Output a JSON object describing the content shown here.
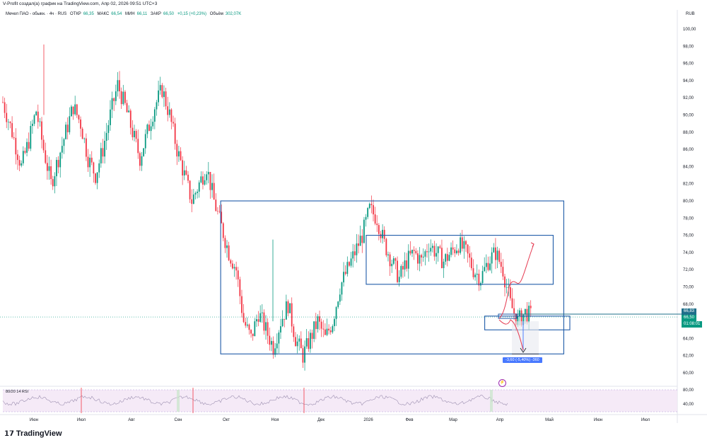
{
  "header": {
    "caption": "V-Profit создал(а) график на TradingView.com, Апр 02, 2026 09:51 UTC+3",
    "symbol": "Мечел ПАО - обыкн. · 4ч · RUS",
    "open_label": "ОТКР",
    "open_value": "66,35",
    "high_label": "МАКС",
    "high_value": "66,54",
    "low_label": "МИН",
    "low_value": "66,11",
    "close_label": "ЗАКР",
    "close_value": "66,50",
    "change": "+0,15 (+0,23%)",
    "volume_label": "Объём",
    "volume_value": "302,07K",
    "currency": "RUB"
  },
  "price_tags": {
    "upper": "66,83",
    "last": "66,50",
    "countdown": "01:08:01"
  },
  "rsi_label": "80/20 14 RSI",
  "measure_label": "-3,60 (-5,40%) -360",
  "brand": "TradingView",
  "colors": {
    "up": "#089981",
    "down": "#f23645",
    "box": "#1e5aa8",
    "projection": "#e53950",
    "rsi_line": "#9c8fb0",
    "rsi_band": "#f3e5f5"
  },
  "chart_data": {
    "type": "candlestick",
    "title": "Мечел ПАО - обыкн.",
    "interval": "4ч",
    "y_axis": {
      "ticks": [
        "100,00",
        "98,00",
        "96,00",
        "94,00",
        "92,00",
        "90,00",
        "88,00",
        "86,00",
        "84,00",
        "82,00",
        "80,00",
        "78,00",
        "76,00",
        "74,00",
        "72,00",
        "70,00",
        "68,00",
        "66,00",
        "64,00",
        "62,00",
        "60,00"
      ],
      "ylim": [
        60,
        100
      ]
    },
    "x_axis": {
      "ticks": [
        "Июн",
        "Июл",
        "Авг",
        "Сен",
        "Окт",
        "Ноя",
        "Дек",
        "2026",
        "Фев",
        "Мар",
        "Апр",
        "Май",
        "Июн",
        "Июл"
      ]
    },
    "price_path": [
      [
        0,
        91.5
      ],
      [
        5,
        88
      ],
      [
        10,
        84
      ],
      [
        14,
        87
      ],
      [
        18,
        90.5
      ],
      [
        22,
        86
      ],
      [
        26,
        82
      ],
      [
        30,
        85
      ],
      [
        34,
        88
      ],
      [
        38,
        91
      ],
      [
        42,
        89
      ],
      [
        46,
        85
      ],
      [
        50,
        83
      ],
      [
        54,
        86
      ],
      [
        58,
        90
      ],
      [
        62,
        93.5
      ],
      [
        66,
        91
      ],
      [
        70,
        88
      ],
      [
        74,
        85
      ],
      [
        78,
        88
      ],
      [
        82,
        91
      ],
      [
        86,
        93
      ],
      [
        90,
        90
      ],
      [
        94,
        86
      ],
      [
        98,
        83
      ],
      [
        102,
        80
      ],
      [
        106,
        82
      ],
      [
        110,
        84
      ],
      [
        114,
        80
      ],
      [
        118,
        77
      ],
      [
        122,
        74
      ],
      [
        126,
        72
      ],
      [
        130,
        66
      ],
      [
        134,
        64
      ],
      [
        138,
        67
      ],
      [
        142,
        65
      ],
      [
        146,
        63
      ],
      [
        150,
        66
      ],
      [
        154,
        68
      ],
      [
        158,
        64
      ],
      [
        162,
        62
      ],
      [
        166,
        64
      ],
      [
        170,
        66
      ],
      [
        174,
        64
      ],
      [
        178,
        66
      ],
      [
        182,
        70
      ],
      [
        186,
        72
      ],
      [
        190,
        74
      ],
      [
        194,
        76
      ],
      [
        198,
        79
      ],
      [
        202,
        78
      ],
      [
        206,
        75
      ],
      [
        210,
        73
      ],
      [
        214,
        71
      ],
      [
        218,
        73
      ],
      [
        222,
        74
      ],
      [
        226,
        73
      ],
      [
        230,
        75
      ],
      [
        234,
        74
      ],
      [
        238,
        73
      ],
      [
        242,
        74
      ],
      [
        246,
        75
      ],
      [
        250,
        74
      ],
      [
        254,
        72
      ],
      [
        258,
        71
      ],
      [
        262,
        73
      ],
      [
        266,
        74
      ],
      [
        270,
        72
      ],
      [
        274,
        68
      ],
      [
        278,
        66
      ],
      [
        282,
        67
      ],
      [
        286,
        66.5
      ]
    ],
    "last_price": 66.5,
    "boxes": [
      {
        "name": "range-box-large",
        "x0": 126,
        "x1": 262,
        "y_top": 80,
        "y_bottom": 62.2
      },
      {
        "name": "range-box-upper",
        "x0": 208,
        "x1": 262,
        "y_top": 76,
        "y_bottom": 70.3
      },
      {
        "name": "range-box-small",
        "x0": 280,
        "x1": 300,
        "y_top": 66.6,
        "y_bottom": 65
      }
    ],
    "rsi": {
      "label": "80/20 14 RSI",
      "ticks": [
        "80,00",
        "40,00"
      ],
      "levels": [
        80,
        20
      ]
    }
  }
}
